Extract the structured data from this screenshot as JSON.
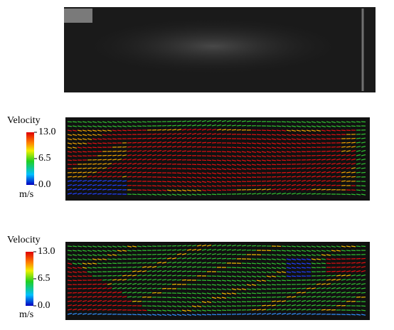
{
  "panels": [
    {
      "colorbar": {
        "title": "Velocity",
        "unit": "m/s",
        "range": [
          0,
          13
        ],
        "ticks": [
          {
            "value": 13,
            "label": "13.0"
          },
          {
            "value": 6.5,
            "label": "6.5"
          },
          {
            "value": 0,
            "label": "0.0"
          }
        ]
      }
    },
    {
      "colorbar": {
        "title": "Velocity",
        "unit": "m/s",
        "range": [
          0,
          13
        ],
        "ticks": [
          {
            "value": 13,
            "label": "13.0"
          },
          {
            "value": 6.5,
            "label": "6.5"
          },
          {
            "value": 0,
            "label": "0.0"
          }
        ]
      }
    }
  ]
}
